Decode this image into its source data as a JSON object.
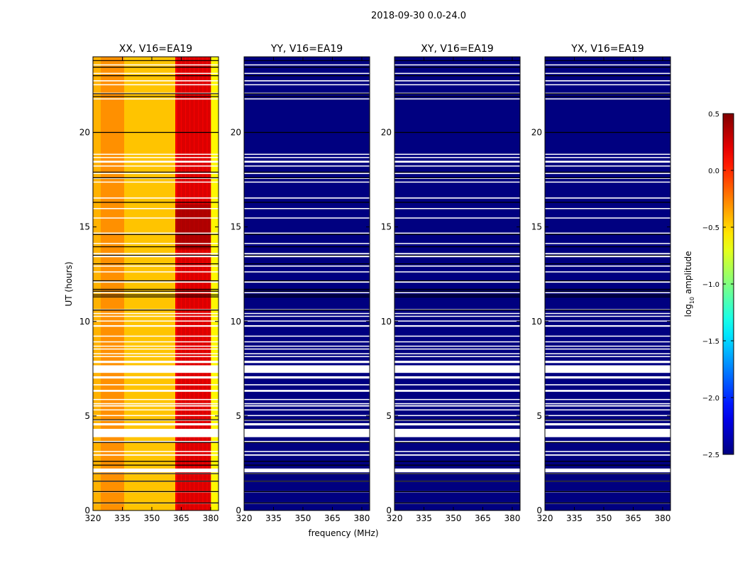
{
  "chart_data": {
    "type": "heatmap",
    "suptitle": "2018-09-30 0.0-24.0",
    "xlabel": "frequency (MHz)",
    "ylabel": "UT (hours)",
    "xlim": [
      320,
      384
    ],
    "ylim": [
      0,
      24
    ],
    "xticks": [
      320,
      335,
      350,
      365,
      380
    ],
    "yticks": [
      0,
      5,
      10,
      15,
      20
    ],
    "colormap": "jet",
    "colorbar": {
      "label_main": "log",
      "label_sub": "10",
      "label_tail": " amplitude",
      "range": [
        -2.5,
        0.5
      ],
      "ticks": [
        0.5,
        0.0,
        -0.5,
        -1.0,
        -1.5,
        -2.0,
        -2.5
      ],
      "tick_labels": [
        "0.5",
        "0.0",
        "−0.5",
        "−1.0",
        "−1.5",
        "−2.0",
        "−2.5"
      ]
    },
    "flagged_ut_hours": [
      [
        0.38,
        0.42
      ],
      [
        0.98,
        1.02
      ],
      [
        1.52,
        1.58
      ],
      [
        1.93,
        1.98
      ],
      [
        2.02,
        2.22
      ],
      [
        2.9,
        2.97
      ],
      [
        3.1,
        3.15
      ],
      [
        3.6,
        3.68
      ],
      [
        3.88,
        4.32
      ],
      [
        4.5,
        4.62
      ],
      [
        4.75,
        4.82
      ],
      [
        5.0,
        5.05
      ],
      [
        5.3,
        5.35
      ],
      [
        5.5,
        5.57
      ],
      [
        5.62,
        5.68
      ],
      [
        5.85,
        5.9
      ],
      [
        6.28,
        6.38
      ],
      [
        6.62,
        6.68
      ],
      [
        6.98,
        7.1
      ],
      [
        7.28,
        7.68
      ],
      [
        7.8,
        7.92
      ],
      [
        8.12,
        8.17
      ],
      [
        8.28,
        8.32
      ],
      [
        8.52,
        8.57
      ],
      [
        8.68,
        8.72
      ],
      [
        8.9,
        8.95
      ],
      [
        9.2,
        9.25
      ],
      [
        9.72,
        9.8
      ],
      [
        10.0,
        10.05
      ],
      [
        10.25,
        10.3
      ],
      [
        10.4,
        10.45
      ],
      [
        10.6,
        10.65
      ],
      [
        11.5,
        11.55
      ],
      [
        12.05,
        12.12
      ],
      [
        12.6,
        12.65
      ],
      [
        12.9,
        12.96
      ],
      [
        13.4,
        13.48
      ],
      [
        13.55,
        13.62
      ],
      [
        14.1,
        14.15
      ],
      [
        14.65,
        14.7
      ],
      [
        15.45,
        15.5
      ],
      [
        15.95,
        16.0
      ],
      [
        16.5,
        16.56
      ],
      [
        17.35,
        17.4
      ],
      [
        17.55,
        17.6
      ],
      [
        17.8,
        17.86
      ],
      [
        18.2,
        18.25
      ],
      [
        18.4,
        18.5
      ],
      [
        18.65,
        18.7
      ],
      [
        18.82,
        18.87
      ],
      [
        21.75,
        21.8
      ],
      [
        22.05,
        22.1
      ],
      [
        22.5,
        22.55
      ],
      [
        22.7,
        22.76
      ],
      [
        23.1,
        23.15
      ],
      [
        23.55,
        23.6
      ]
    ],
    "dark_ut_lines": [
      0.4,
      1.0,
      1.55,
      1.95,
      2.4,
      2.6,
      3.6,
      4.8,
      10.6,
      11.3,
      11.4,
      11.6,
      11.7,
      12.15,
      13.05,
      13.5,
      13.95,
      14.6,
      16.3,
      17.6,
      17.9,
      20.0,
      21.9,
      22.05,
      23.0,
      23.45,
      23.8
    ],
    "panels": [
      {
        "title": "XX, V16=EA19",
        "typical_log10_amplitude": -0.35,
        "channel_profile_log10_amplitude": [
          {
            "from_mhz": 320,
            "to_mhz": 324,
            "value": -0.4
          },
          {
            "from_mhz": 324,
            "to_mhz": 336,
            "value": -0.3
          },
          {
            "from_mhz": 336,
            "to_mhz": 362,
            "value": -0.45
          },
          {
            "from_mhz": 362,
            "to_mhz": 380,
            "value": 0.15
          },
          {
            "from_mhz": 380,
            "to_mhz": 384,
            "value": -0.6
          }
        ],
        "peak_log10_amplitude_ut_14_to_16": 0.45
      },
      {
        "title": "YY, V16=EA19",
        "typical_log10_amplitude": -2.5
      },
      {
        "title": "XY, V16=EA19",
        "typical_log10_amplitude": -2.5
      },
      {
        "title": "YX, V16=EA19",
        "typical_log10_amplitude": -2.5
      }
    ]
  }
}
